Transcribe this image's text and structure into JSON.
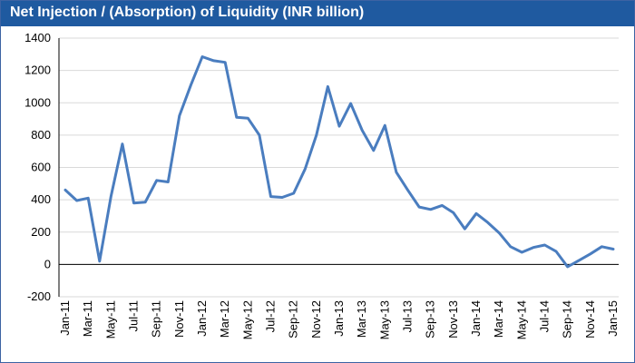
{
  "chart_data": {
    "type": "line",
    "title": "Net  Injection / (Absorption) of Liquidity (INR billion)",
    "xlabel": "",
    "ylabel": "",
    "ylim": [
      -200,
      1400
    ],
    "yticks": [
      -200,
      0,
      200,
      400,
      600,
      800,
      1000,
      1200,
      1400
    ],
    "grid": "horizontal",
    "legend": "none",
    "line_color": "#4a7dbf",
    "x_tick_labels": [
      "Jan-11",
      "Mar-11",
      "May-11",
      "Jul-11",
      "Sep-11",
      "Nov-11",
      "Jan-12",
      "Mar-12",
      "May-12",
      "Jul-12",
      "Sep-12",
      "Nov-12",
      "Jan-13",
      "Mar-13",
      "May-13",
      "Jul-13",
      "Sep-13",
      "Nov-13",
      "Jan-14",
      "Mar-14",
      "May-14",
      "Jul-14",
      "Sep-14",
      "Nov-14",
      "Jan-15"
    ],
    "categories": [
      "Jan-11",
      "Feb-11",
      "Mar-11",
      "Apr-11",
      "May-11",
      "Jun-11",
      "Jul-11",
      "Aug-11",
      "Sep-11",
      "Oct-11",
      "Nov-11",
      "Dec-11",
      "Jan-12",
      "Feb-12",
      "Mar-12",
      "Apr-12",
      "May-12",
      "Jun-12",
      "Jul-12",
      "Aug-12",
      "Sep-12",
      "Oct-12",
      "Nov-12",
      "Dec-12",
      "Jan-13",
      "Feb-13",
      "Mar-13",
      "Apr-13",
      "May-13",
      "Jun-13",
      "Jul-13",
      "Aug-13",
      "Sep-13",
      "Oct-13",
      "Nov-13",
      "Dec-13",
      "Jan-14",
      "Feb-14",
      "Mar-14",
      "Apr-14",
      "May-14",
      "Jun-14",
      "Jul-14",
      "Aug-14",
      "Sep-14",
      "Oct-14",
      "Nov-14",
      "Dec-14",
      "Jan-15"
    ],
    "series": [
      {
        "values": [
          460,
          395,
          410,
          20,
          420,
          745,
          380,
          385,
          520,
          510,
          920,
          1110,
          1285,
          1260,
          1250,
          910,
          905,
          800,
          420,
          415,
          440,
          590,
          800,
          1100,
          855,
          995,
          830,
          705,
          860,
          570,
          460,
          355,
          340,
          365,
          320,
          220,
          315,
          260,
          195,
          110,
          75,
          105,
          120,
          80,
          -15,
          25,
          65,
          110,
          95
        ]
      }
    ]
  }
}
